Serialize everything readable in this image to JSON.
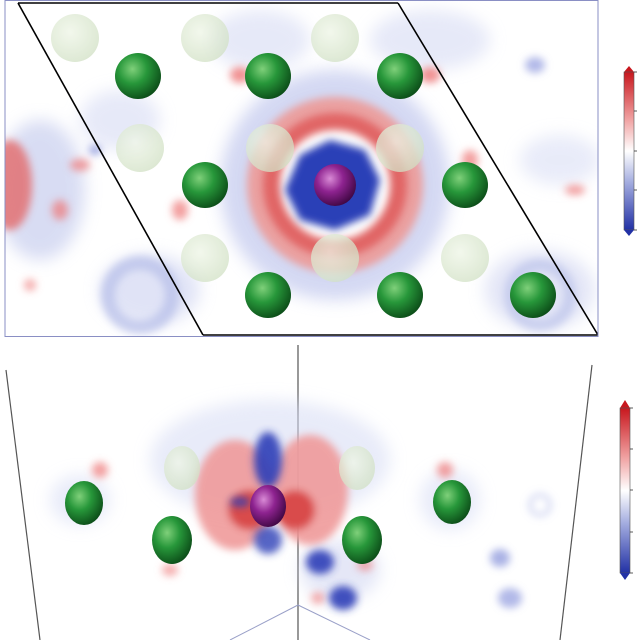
{
  "figure": {
    "panels": [
      {
        "id": "top-view",
        "colorbar": {
          "max_color": "#d62a2a",
          "mid_color": "#ffffff",
          "min_color": "#2b3fb0",
          "tick_count": 5,
          "tick_labels": []
        },
        "atoms": {
          "host_color": "#1f8a2c",
          "dopant_color": "#8a1f8c",
          "ghost_color": "#d8e8cc"
        }
      },
      {
        "id": "side-view",
        "colorbar": {
          "max_color": "#d62a2a",
          "mid_color": "#ffffff",
          "min_color": "#2b3fb0",
          "tick_count": 5,
          "tick_labels": []
        },
        "atoms": {
          "host_color": "#1f8a2c",
          "dopant_color": "#8a1f8c",
          "ghost_color": "#d8e8cc"
        }
      }
    ]
  }
}
